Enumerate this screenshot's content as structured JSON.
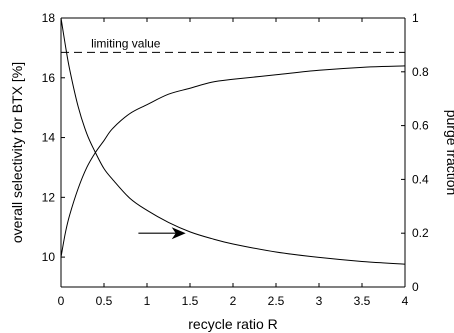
{
  "chart_data": {
    "type": "line",
    "xlabel": "recycle ratio R",
    "ylabel_left": "overall selectivity for BTX [%]",
    "ylabel_right": "purge fraction",
    "xlim": [
      0,
      4
    ],
    "ylim_left": [
      9,
      18
    ],
    "ylim_right": [
      0,
      1
    ],
    "x_ticks": [
      0,
      0.5,
      1,
      1.5,
      2,
      2.5,
      3,
      3.5,
      4
    ],
    "x_tick_labels": [
      "0",
      "0.5",
      "1",
      "1.5",
      "2",
      "2.5",
      "3",
      "3.5",
      "4"
    ],
    "y_left_ticks": [
      10,
      12,
      14,
      16,
      18
    ],
    "y_left_tick_labels": [
      "10",
      "12",
      "14",
      "16",
      "18"
    ],
    "y_right_ticks": [
      0,
      0.2,
      0.4,
      0.6,
      0.8,
      1
    ],
    "y_right_tick_labels": [
      "0",
      "0.2",
      "0.4",
      "0.6",
      "0.8",
      "1"
    ],
    "grid": false,
    "legend": "none",
    "series": [
      {
        "axis": "left",
        "x": [
          0,
          0.05,
          0.1,
          0.2,
          0.3,
          0.4,
          0.5,
          0.6,
          0.8,
          1.0,
          1.25,
          1.5,
          1.75,
          2.0,
          2.5,
          3.0,
          3.5,
          4.0
        ],
        "y": [
          10.0,
          10.8,
          11.4,
          12.3,
          13.0,
          13.5,
          13.9,
          14.3,
          14.8,
          15.1,
          15.45,
          15.65,
          15.85,
          15.95,
          16.1,
          16.25,
          16.35,
          16.4
        ]
      },
      {
        "axis": "right",
        "x": [
          0,
          0.05,
          0.1,
          0.2,
          0.3,
          0.4,
          0.5,
          0.6,
          0.8,
          1.0,
          1.25,
          1.5,
          1.75,
          2.0,
          2.5,
          3.0,
          3.5,
          4.0
        ],
        "y": [
          1.0,
          0.9,
          0.81,
          0.67,
          0.57,
          0.5,
          0.44,
          0.4,
          0.33,
          0.285,
          0.24,
          0.205,
          0.18,
          0.16,
          0.13,
          0.11,
          0.095,
          0.085
        ]
      }
    ],
    "reference_line": {
      "label": "limiting value",
      "axis": "left",
      "y": 16.85,
      "style": "dashed"
    },
    "arrow_annotation": {
      "axis": "right",
      "from": [
        0.9,
        0.2
      ],
      "to": [
        1.45,
        0.2
      ],
      "direction": "right"
    }
  }
}
